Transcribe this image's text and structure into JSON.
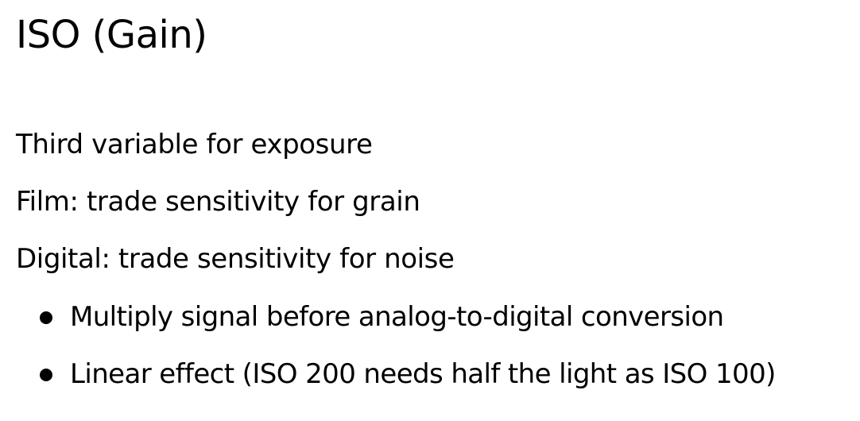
{
  "slide": {
    "title": "ISO (Gain)",
    "lines": [
      "Third variable for exposure",
      "Film: trade sensitivity for grain",
      "Digital: trade sensitivity for noise"
    ],
    "bullets": [
      "Multiply signal before analog-to-digital conversion",
      "Linear effect (ISO 200 needs half the light as ISO 100)"
    ]
  }
}
